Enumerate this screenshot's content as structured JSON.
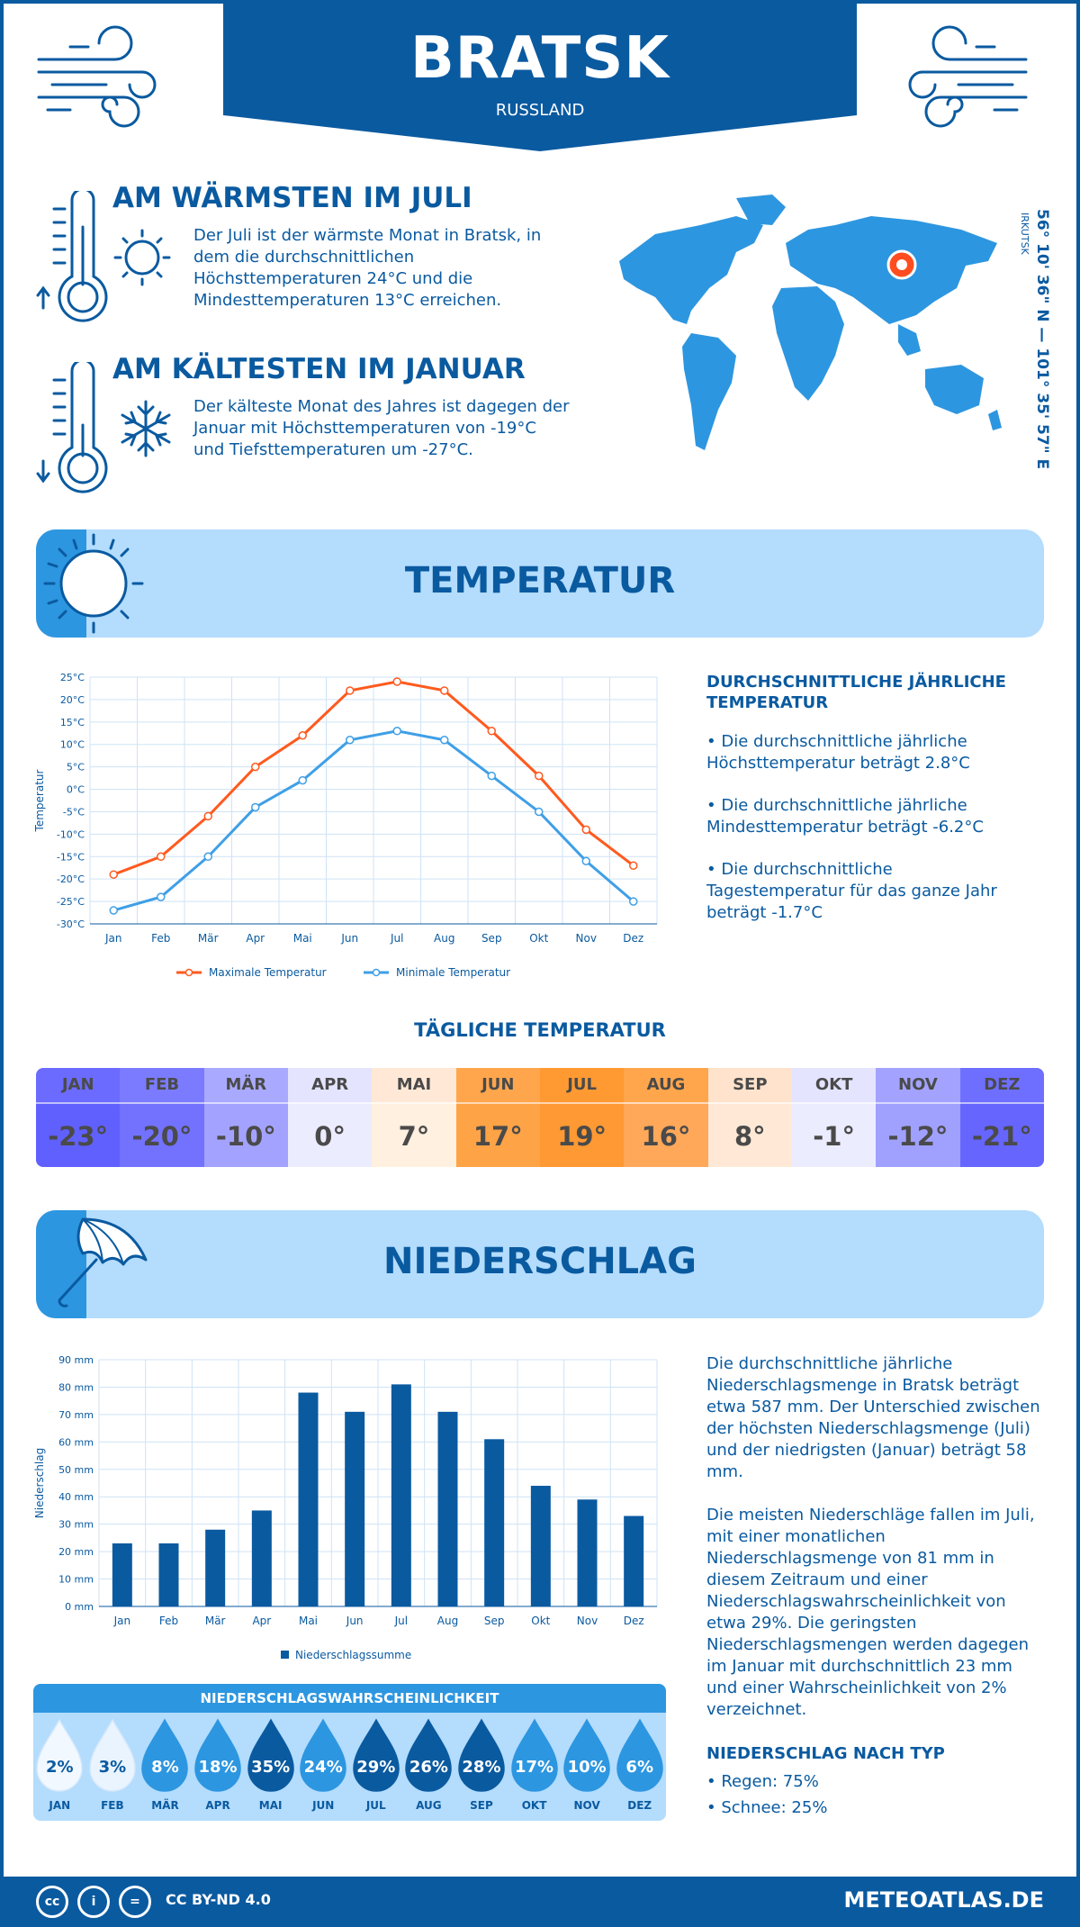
{
  "header": {
    "city": "BRATSK",
    "country": "RUSSLAND"
  },
  "warmest": {
    "title": "AM WÄRMSTEN IM JULI",
    "text": "Der Juli ist der wärmste Monat in Bratsk, in dem die durchschnittlichen Höchsttemperaturen 24°C und die Mindesttemperaturen 13°C erreichen."
  },
  "coldest": {
    "title": "AM KÄLTESTEN IM JANUAR",
    "text": "Der kälteste Monat des Jahres ist dagegen der Januar mit Höchsttemperaturen von -19°C und Tiefsttemperaturen um -27°C."
  },
  "location": {
    "coordinates": "56° 10' 36\" N — 101° 35' 57\" E",
    "region": "IRKUTSK"
  },
  "temperature_section": {
    "title": "TEMPERATUR",
    "side_heading": "DURCHSCHNITTLICHE JÄHRLICHE TEMPERATUR",
    "bullets": [
      "• Die durchschnittliche jährliche Höchsttemperatur beträgt 2.8°C",
      "• Die durchschnittliche jährliche Mindesttemperatur beträgt -6.2°C",
      "• Die durchschnittliche Tagestemperatur für das ganze Jahr beträgt -1.7°C"
    ]
  },
  "daily": {
    "title": "TÄGLICHE TEMPERATUR",
    "months": [
      "JAN",
      "FEB",
      "MÄR",
      "APR",
      "MAI",
      "JUN",
      "JUL",
      "AUG",
      "SEP",
      "OKT",
      "NOV",
      "DEZ"
    ],
    "values": [
      "-23°",
      "-20°",
      "-10°",
      "0°",
      "7°",
      "17°",
      "19°",
      "16°",
      "8°",
      "-1°",
      "-12°",
      "-21°"
    ],
    "header_colors": [
      "#6b6bff",
      "#7b7bff",
      "#a9a9ff",
      "#e4e4ff",
      "#ffe9d6",
      "#ffa64d",
      "#ff9a33",
      "#ffa64d",
      "#ffe3cc",
      "#e4e4ff",
      "#a3a3ff",
      "#6f6fff"
    ],
    "value_colors": [
      "#6060ff",
      "#7272ff",
      "#a3a3ff",
      "#ececff",
      "#fff0e0",
      "#ffa347",
      "#ff9933",
      "#ffa85a",
      "#ffe9d6",
      "#ececff",
      "#a0a0ff",
      "#6666ff"
    ]
  },
  "precip_section": {
    "title": "NIEDERSCHLAG",
    "text1": "Die durchschnittliche jährliche Niederschlagsmenge in Bratsk beträgt etwa 587 mm. Der Unterschied zwischen der höchsten Niederschlagsmenge (Juli) und der niedrigsten (Januar) beträgt 58 mm.",
    "text2": "Die meisten Niederschläge fallen im Juli, mit einer monatlichen Niederschlagsmenge von 81 mm in diesem Zeitraum und einer Niederschlagswahrscheinlichkeit von etwa 29%. Die geringsten Niederschlagsmengen werden dagegen im Januar mit durchschnittlich 23 mm und einer Wahrscheinlichkeit von 2% verzeichnet.",
    "type_heading": "NIEDERSCHLAG NACH TYP",
    "types": [
      "• Regen: 75%",
      "• Schnee: 25%"
    ]
  },
  "probability": {
    "title": "NIEDERSCHLAGSWAHRSCHEINLICHKEIT",
    "months": [
      "JAN",
      "FEB",
      "MÄR",
      "APR",
      "MAI",
      "JUN",
      "JUL",
      "AUG",
      "SEP",
      "OKT",
      "NOV",
      "DEZ"
    ],
    "values": [
      "2%",
      "3%",
      "8%",
      "18%",
      "35%",
      "24%",
      "29%",
      "26%",
      "28%",
      "17%",
      "10%",
      "6%"
    ],
    "colors": [
      "#f2f8ff",
      "#eaf4ff",
      "#2d96e0",
      "#2d96e0",
      "#0a5aa0",
      "#2d96e0",
      "#0a5aa0",
      "#0a5aa0",
      "#0a5aa0",
      "#2d96e0",
      "#2d96e0",
      "#2d96e0"
    ]
  },
  "chart_data": [
    {
      "type": "line",
      "categories": [
        "Jan",
        "Feb",
        "Mär",
        "Apr",
        "Mai",
        "Jun",
        "Jul",
        "Aug",
        "Sep",
        "Okt",
        "Nov",
        "Dez"
      ],
      "series": [
        {
          "name": "Maximale Temperatur",
          "values": [
            -19,
            -15,
            -6,
            5,
            12,
            22,
            24,
            22,
            13,
            3,
            -9,
            -17
          ],
          "color": "#ff5a1f"
        },
        {
          "name": "Minimale Temperatur",
          "values": [
            -27,
            -24,
            -15,
            -4,
            2,
            11,
            13,
            11,
            3,
            -5,
            -16,
            -25
          ],
          "color": "#3f9fe6"
        }
      ],
      "ylabel": "Temperatur",
      "ylim": [
        -30,
        25
      ],
      "yticks": [
        "25°C",
        "20°C",
        "15°C",
        "10°C",
        "5°C",
        "0°C",
        "-5°C",
        "-10°C",
        "-15°C",
        "-20°C",
        "-25°C",
        "-30°C"
      ],
      "grid": true,
      "legend": "bottom"
    },
    {
      "type": "bar",
      "categories": [
        "Jan",
        "Feb",
        "Mär",
        "Apr",
        "Mai",
        "Jun",
        "Jul",
        "Aug",
        "Sep",
        "Okt",
        "Nov",
        "Dez"
      ],
      "series": [
        {
          "name": "Niederschlagssumme",
          "values": [
            23,
            23,
            28,
            35,
            78,
            71,
            81,
            71,
            61,
            44,
            39,
            33
          ],
          "color": "#0a5aa0"
        }
      ],
      "ylabel": "Niederschlag",
      "ylim": [
        0,
        90
      ],
      "yticks": [
        "90 mm",
        "80 mm",
        "70 mm",
        "60 mm",
        "50 mm",
        "40 mm",
        "30 mm",
        "20 mm",
        "10 mm",
        "0 mm"
      ],
      "grid": true,
      "legend": "bottom"
    }
  ],
  "footer": {
    "license": "CC BY-ND 4.0",
    "site": "METEOATLAS.DE",
    "cc_icons": [
      "cc",
      "i",
      "="
    ]
  }
}
